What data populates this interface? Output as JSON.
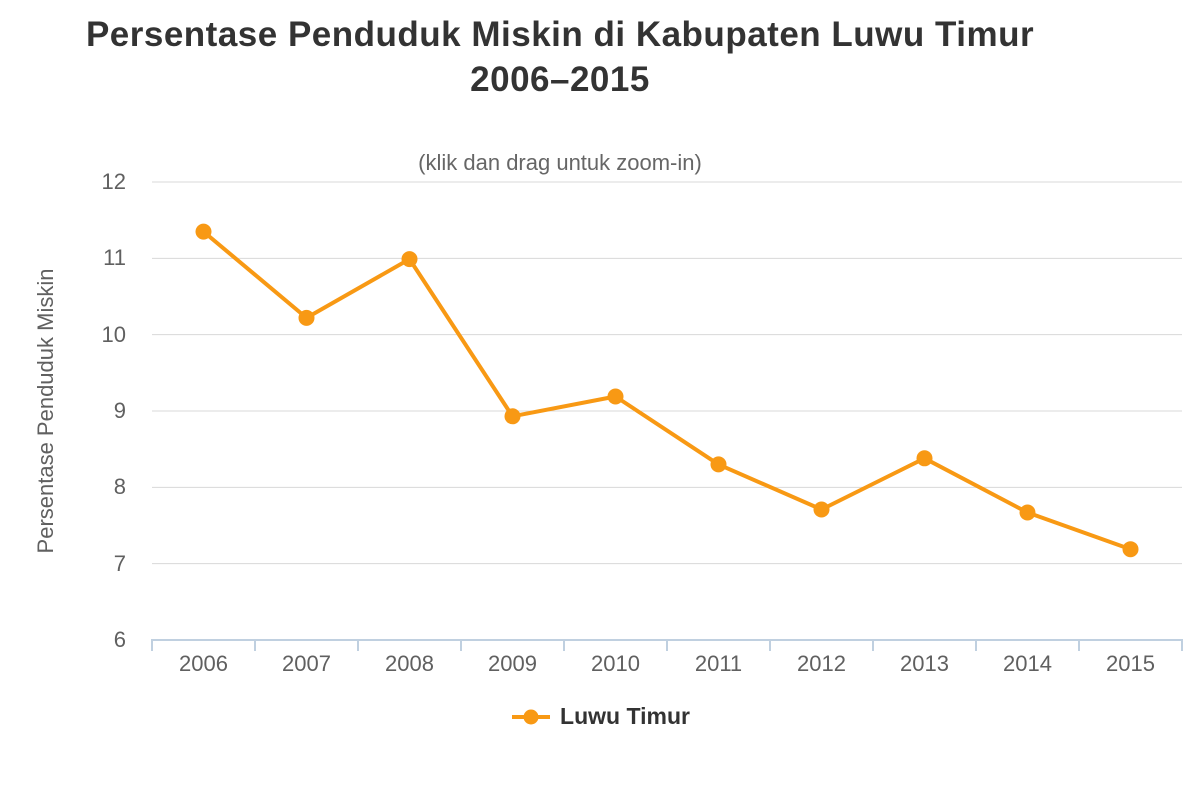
{
  "title": {
    "line1": "Persentase Penduduk Miskin di Kabupaten Luwu Timur",
    "line2": "2006–2015"
  },
  "subtitle": "(klik dan drag untuk zoom-in)",
  "legend": {
    "label": "Luwu Timur"
  },
  "colors": {
    "series": "#F89914",
    "title_text": "#333333",
    "subtitle_text": "#666666",
    "axis_label": "#606060",
    "gridline": "#D8D8D8",
    "axis_line": "#C0D0E0",
    "background": "#FFFFFF"
  },
  "chart_data": {
    "type": "line",
    "title": "Persentase Penduduk Miskin di Kabupaten Luwu Timur 2006–2015",
    "subtitle": "(klik dan drag untuk zoom-in)",
    "categories": [
      "2006",
      "2007",
      "2008",
      "2009",
      "2010",
      "2011",
      "2012",
      "2013",
      "2014",
      "2015"
    ],
    "series": [
      {
        "name": "Luwu Timur",
        "color": "#F89914",
        "values": [
          11.35,
          10.22,
          10.99,
          8.93,
          9.19,
          8.3,
          7.71,
          8.38,
          7.67,
          7.19
        ]
      }
    ],
    "xlabel": "",
    "ylabel": "Persentase Penduduk Miskin",
    "ylim": [
      6,
      12
    ],
    "yticks": [
      6,
      7,
      8,
      9,
      10,
      11,
      12
    ],
    "grid": true,
    "legend_position": "bottom",
    "marker": "circle",
    "line_width": 4
  }
}
